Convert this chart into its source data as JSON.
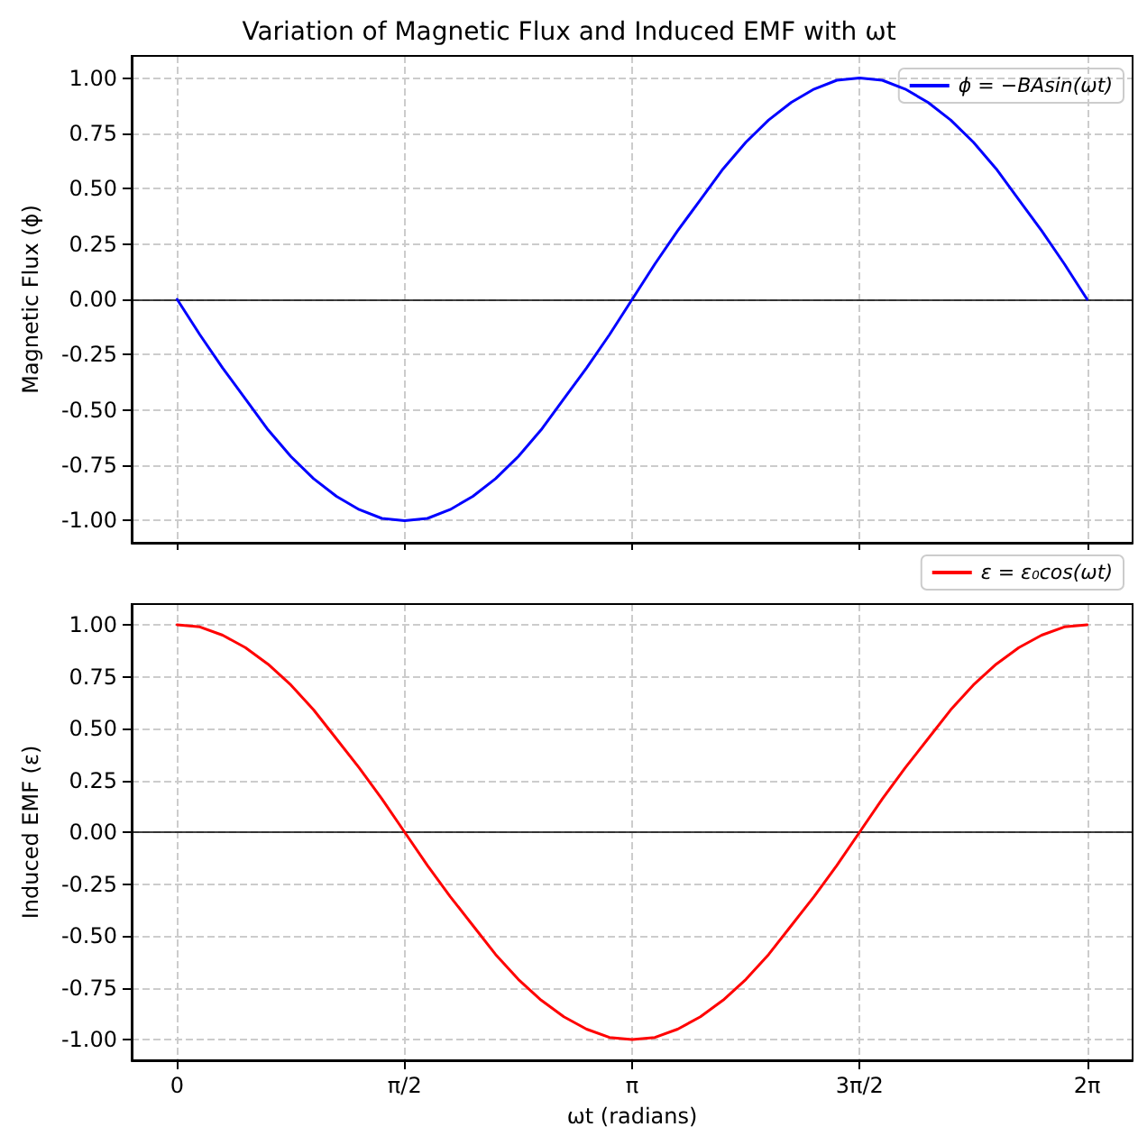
{
  "chart_data": [
    {
      "type": "line",
      "title": "Variation of Magnetic Flux and Induced EMF with ωt",
      "ylabel": "Magnetic Flux (ϕ)",
      "x": [
        0,
        0.157,
        0.314,
        0.471,
        0.628,
        0.785,
        0.942,
        1.1,
        1.257,
        1.414,
        1.571,
        1.728,
        1.885,
        2.042,
        2.199,
        2.356,
        2.513,
        2.67,
        2.827,
        2.985,
        3.142,
        3.299,
        3.456,
        3.613,
        3.77,
        3.927,
        4.084,
        4.241,
        4.398,
        4.555,
        4.712,
        4.869,
        5.027,
        5.184,
        5.341,
        5.498,
        5.655,
        5.812,
        5.969,
        6.126,
        6.283
      ],
      "series": [
        {
          "name": "ϕ = −BAsin(ωt)",
          "color": "#0000ff",
          "values": [
            0,
            -0.16,
            -0.31,
            -0.45,
            -0.59,
            -0.71,
            -0.81,
            -0.89,
            -0.95,
            -0.99,
            -1,
            -0.99,
            -0.95,
            -0.89,
            -0.81,
            -0.71,
            -0.59,
            -0.45,
            -0.31,
            -0.16,
            0,
            0.16,
            0.31,
            0.45,
            0.59,
            0.71,
            0.81,
            0.89,
            0.95,
            0.99,
            1,
            0.99,
            0.95,
            0.89,
            0.81,
            0.71,
            0.59,
            0.45,
            0.31,
            0.16,
            0
          ]
        }
      ],
      "xlim": [
        -0.314,
        6.597
      ],
      "xticks": [
        {
          "value": 0,
          "label": null
        },
        {
          "value": 1.571,
          "label": null
        },
        {
          "value": 3.142,
          "label": null
        },
        {
          "value": 4.712,
          "label": null
        },
        {
          "value": 6.283,
          "label": null
        }
      ],
      "ylim": [
        -1.1,
        1.1
      ],
      "yticks": [
        {
          "value": -1,
          "label": "-1.00"
        },
        {
          "value": -0.75,
          "label": "-0.75"
        },
        {
          "value": -0.5,
          "label": "-0.50"
        },
        {
          "value": -0.25,
          "label": "-0.25"
        },
        {
          "value": 0,
          "label": "0.00"
        },
        {
          "value": 0.25,
          "label": "0.25"
        },
        {
          "value": 0.5,
          "label": "0.50"
        },
        {
          "value": 0.75,
          "label": "0.75"
        },
        {
          "value": 1,
          "label": "1.00"
        }
      ],
      "ref_lines": [
        {
          "axis": "y",
          "value": 0,
          "color": "#000000"
        }
      ],
      "grid": true,
      "legend": "top right",
      "tick_labels": "y",
      "line_style": "solid"
    },
    {
      "type": "line",
      "xlabel": "ωt (radians)",
      "ylabel": "Induced EMF (ε)",
      "x": [
        0,
        0.157,
        0.314,
        0.471,
        0.628,
        0.785,
        0.942,
        1.1,
        1.257,
        1.414,
        1.571,
        1.728,
        1.885,
        2.042,
        2.199,
        2.356,
        2.513,
        2.67,
        2.827,
        2.985,
        3.142,
        3.299,
        3.456,
        3.613,
        3.77,
        3.927,
        4.084,
        4.241,
        4.398,
        4.555,
        4.712,
        4.869,
        5.027,
        5.184,
        5.341,
        5.498,
        5.655,
        5.812,
        5.969,
        6.126,
        6.283
      ],
      "series": [
        {
          "name": "ε = ε₀cos(ωt)",
          "color": "#ff0000",
          "values": [
            1,
            0.99,
            0.95,
            0.89,
            0.81,
            0.71,
            0.59,
            0.45,
            0.31,
            0.16,
            0,
            -0.16,
            -0.31,
            -0.45,
            -0.59,
            -0.71,
            -0.81,
            -0.89,
            -0.95,
            -0.99,
            -1,
            -0.99,
            -0.95,
            -0.89,
            -0.81,
            -0.71,
            -0.59,
            -0.45,
            -0.31,
            -0.16,
            0,
            0.16,
            0.31,
            0.45,
            0.59,
            0.71,
            0.81,
            0.89,
            0.95,
            0.99,
            1
          ]
        }
      ],
      "xlim": [
        -0.314,
        6.597
      ],
      "xticks": [
        {
          "value": 0,
          "label": "0"
        },
        {
          "value": 1.571,
          "label": "π/2"
        },
        {
          "value": 3.142,
          "label": "π"
        },
        {
          "value": 4.712,
          "label": "3π/2"
        },
        {
          "value": 6.283,
          "label": "2π"
        }
      ],
      "ylim": [
        -1.1,
        1.1
      ],
      "yticks": [
        {
          "value": -1,
          "label": "-1.00"
        },
        {
          "value": -0.75,
          "label": "-0.75"
        },
        {
          "value": -0.5,
          "label": "-0.50"
        },
        {
          "value": -0.25,
          "label": "-0.25"
        },
        {
          "value": 0,
          "label": "0.00"
        },
        {
          "value": 0.25,
          "label": "0.25"
        },
        {
          "value": 0.5,
          "label": "0.50"
        },
        {
          "value": 0.75,
          "label": "0.75"
        },
        {
          "value": 1,
          "label": "1.00"
        }
      ],
      "ref_lines": [
        {
          "axis": "y",
          "value": 0,
          "color": "#000000"
        }
      ],
      "grid": true,
      "legend": "top right",
      "line_style": "solid"
    }
  ]
}
